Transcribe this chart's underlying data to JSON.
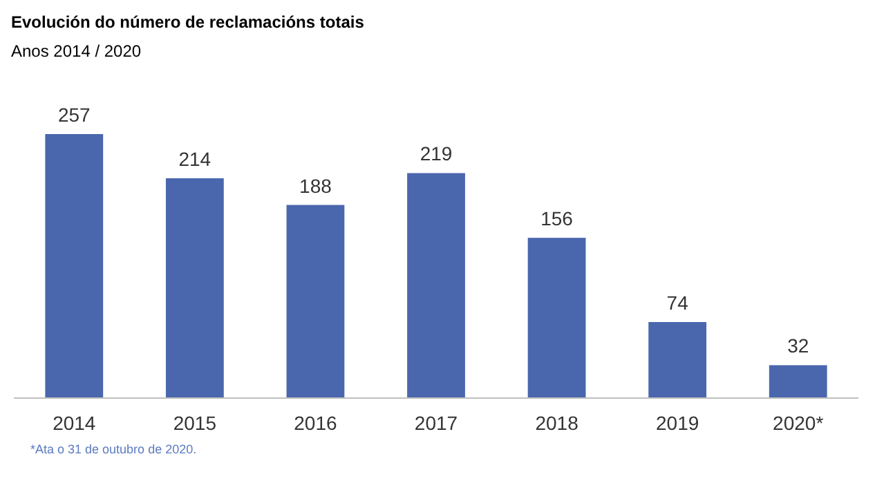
{
  "chart_data": {
    "type": "bar",
    "title": "Evolución do número de reclamacións totais",
    "subtitle": "Anos 2014 / 2020",
    "categories": [
      "2014",
      "2015",
      "2016",
      "2017",
      "2018",
      "2019",
      "2020*"
    ],
    "values": [
      257,
      214,
      188,
      219,
      156,
      74,
      32
    ],
    "color": "#4a67ad",
    "data_labels": true,
    "annotations": [
      "*Ata o 31 de outubro de 2020."
    ]
  }
}
